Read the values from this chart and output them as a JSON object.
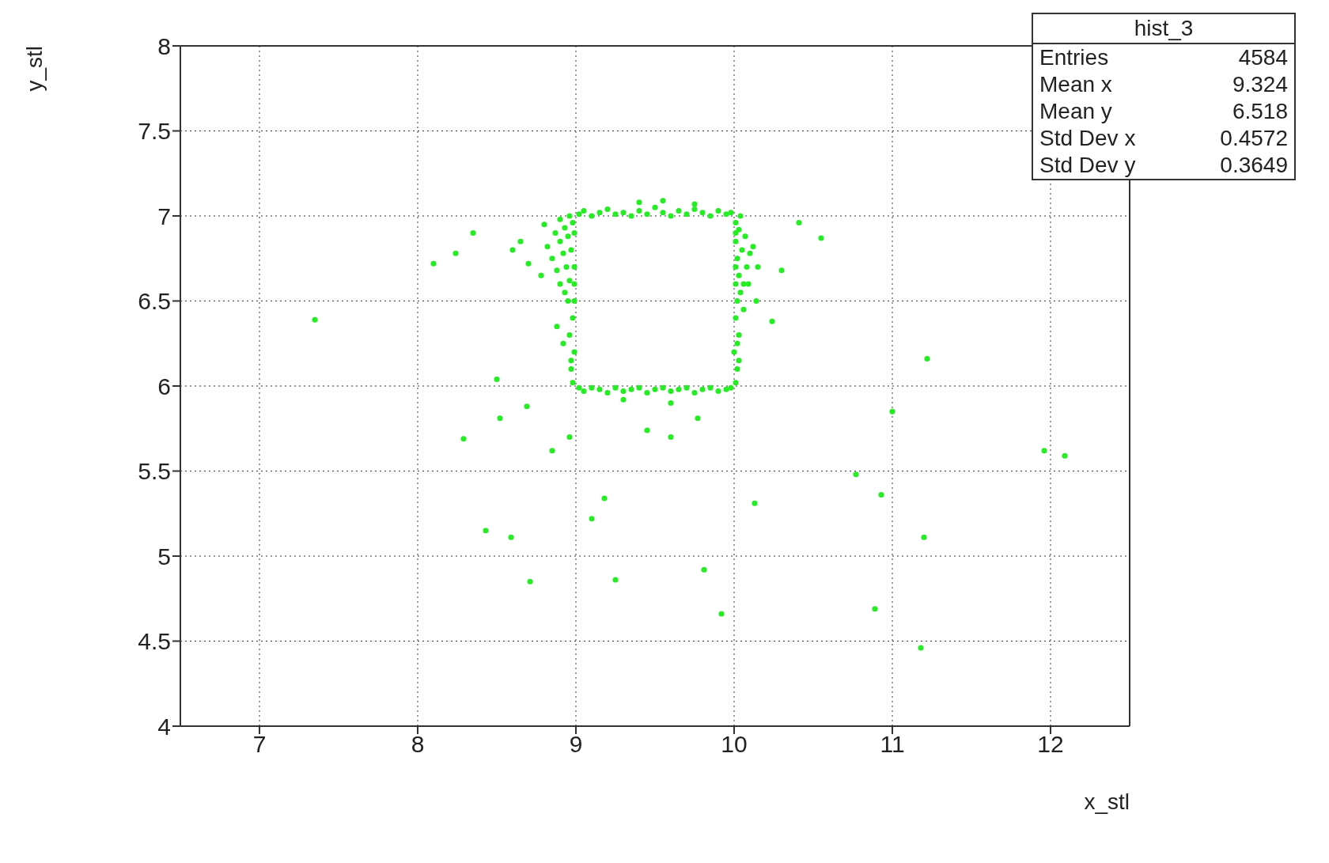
{
  "chart_data": {
    "type": "scatter",
    "xlabel": "x_stl",
    "ylabel": "y_stl",
    "xlim": [
      6.5,
      12.5
    ],
    "ylim": [
      4,
      8
    ],
    "xticks": [
      7,
      8,
      9,
      10,
      11,
      12
    ],
    "yticks": [
      4,
      4.5,
      5,
      5.5,
      6,
      6.5,
      7,
      7.5,
      8
    ],
    "grid": true,
    "marker": "circle",
    "annotations": [
      "hist_3",
      "Entries",
      "4584",
      "Mean x",
      "9.324",
      "Mean y",
      "6.518",
      "Std Dev x",
      "0.4572",
      "Std Dev y",
      "0.3649"
    ],
    "series": [
      {
        "color": "#22ee22",
        "x": [
          8.98,
          8.97,
          8.99,
          8.96,
          8.98,
          8.95,
          8.93,
          8.9,
          8.96,
          8.88,
          8.94,
          8.85,
          8.92,
          8.97,
          8.82,
          8.9,
          8.95,
          8.87,
          8.93,
          8.98,
          8.9,
          8.96,
          8.99,
          8.99,
          8.99,
          8.97,
          8.92,
          8.88,
          8.99,
          8.8,
          8.78,
          8.7,
          8.65,
          8.6,
          10.01,
          10.02,
          10.0,
          10.03,
          10.01,
          10.02,
          10.04,
          10.06,
          10.03,
          10.08,
          10.02,
          10.1,
          10.05,
          10.01,
          10.07,
          10.03,
          10.01,
          10.04,
          10.12,
          10.15,
          10.09,
          10.01,
          10.01,
          10.01,
          10.02,
          10.06,
          9.02,
          9.05,
          9.1,
          9.15,
          9.2,
          9.25,
          9.3,
          9.35,
          9.4,
          9.45,
          9.5,
          9.55,
          9.6,
          9.65,
          9.7,
          9.75,
          9.8,
          9.85,
          9.9,
          9.95,
          9.98,
          9.4,
          9.55,
          9.75,
          9.02,
          9.05,
          9.1,
          9.15,
          9.2,
          9.25,
          9.3,
          9.35,
          9.4,
          9.45,
          9.5,
          9.55,
          9.6,
          9.65,
          9.7,
          9.75,
          9.8,
          9.85,
          9.9,
          9.95,
          9.98,
          9.3,
          9.6,
          7.35,
          8.1,
          8.24,
          8.35,
          8.29,
          8.43,
          8.59,
          8.52,
          8.71,
          8.85,
          9.1,
          9.18,
          9.25,
          9.81,
          9.92,
          10.13,
          10.24,
          10.41,
          10.55,
          10.77,
          10.93,
          10.89,
          11.2,
          11.22,
          11.18,
          11.0,
          11.96,
          12.09,
          8.5,
          8.69,
          8.96,
          9.45,
          9.6,
          9.77,
          10.3,
          10.14,
          10.03
        ],
        "values": [
          6.02,
          6.1,
          6.2,
          6.3,
          6.4,
          6.5,
          6.55,
          6.6,
          6.62,
          6.68,
          6.7,
          6.75,
          6.78,
          6.8,
          6.82,
          6.85,
          6.88,
          6.9,
          6.93,
          6.96,
          6.98,
          7.0,
          6.5,
          6.7,
          6.9,
          6.15,
          6.25,
          6.35,
          6.6,
          6.95,
          6.65,
          6.72,
          6.85,
          6.8,
          6.02,
          6.1,
          6.2,
          6.3,
          6.4,
          6.5,
          6.55,
          6.6,
          6.65,
          6.7,
          6.75,
          6.78,
          6.8,
          6.85,
          6.88,
          6.92,
          6.96,
          7.0,
          6.82,
          6.7,
          6.6,
          6.6,
          6.7,
          6.9,
          6.25,
          6.45,
          7.01,
          7.03,
          7.0,
          7.02,
          7.04,
          7.01,
          7.02,
          7.0,
          7.03,
          7.01,
          7.05,
          7.02,
          7.0,
          7.03,
          7.01,
          7.04,
          7.02,
          7.0,
          7.03,
          7.01,
          7.02,
          7.08,
          7.09,
          7.07,
          5.99,
          5.97,
          5.99,
          5.98,
          5.96,
          5.99,
          5.97,
          5.98,
          5.99,
          5.96,
          5.98,
          5.99,
          5.97,
          5.98,
          5.99,
          5.96,
          5.98,
          5.99,
          5.97,
          5.98,
          5.99,
          5.92,
          5.9,
          6.39,
          6.72,
          6.78,
          6.9,
          5.69,
          5.15,
          5.11,
          5.81,
          4.85,
          5.62,
          5.22,
          5.34,
          4.86,
          4.92,
          4.66,
          5.31,
          6.38,
          6.96,
          6.87,
          5.48,
          5.36,
          4.69,
          5.11,
          6.16,
          4.46,
          5.85,
          5.62,
          5.59,
          6.04,
          5.88,
          5.7,
          5.74,
          5.7,
          5.81,
          6.68,
          6.5,
          6.15
        ]
      }
    ]
  }
}
